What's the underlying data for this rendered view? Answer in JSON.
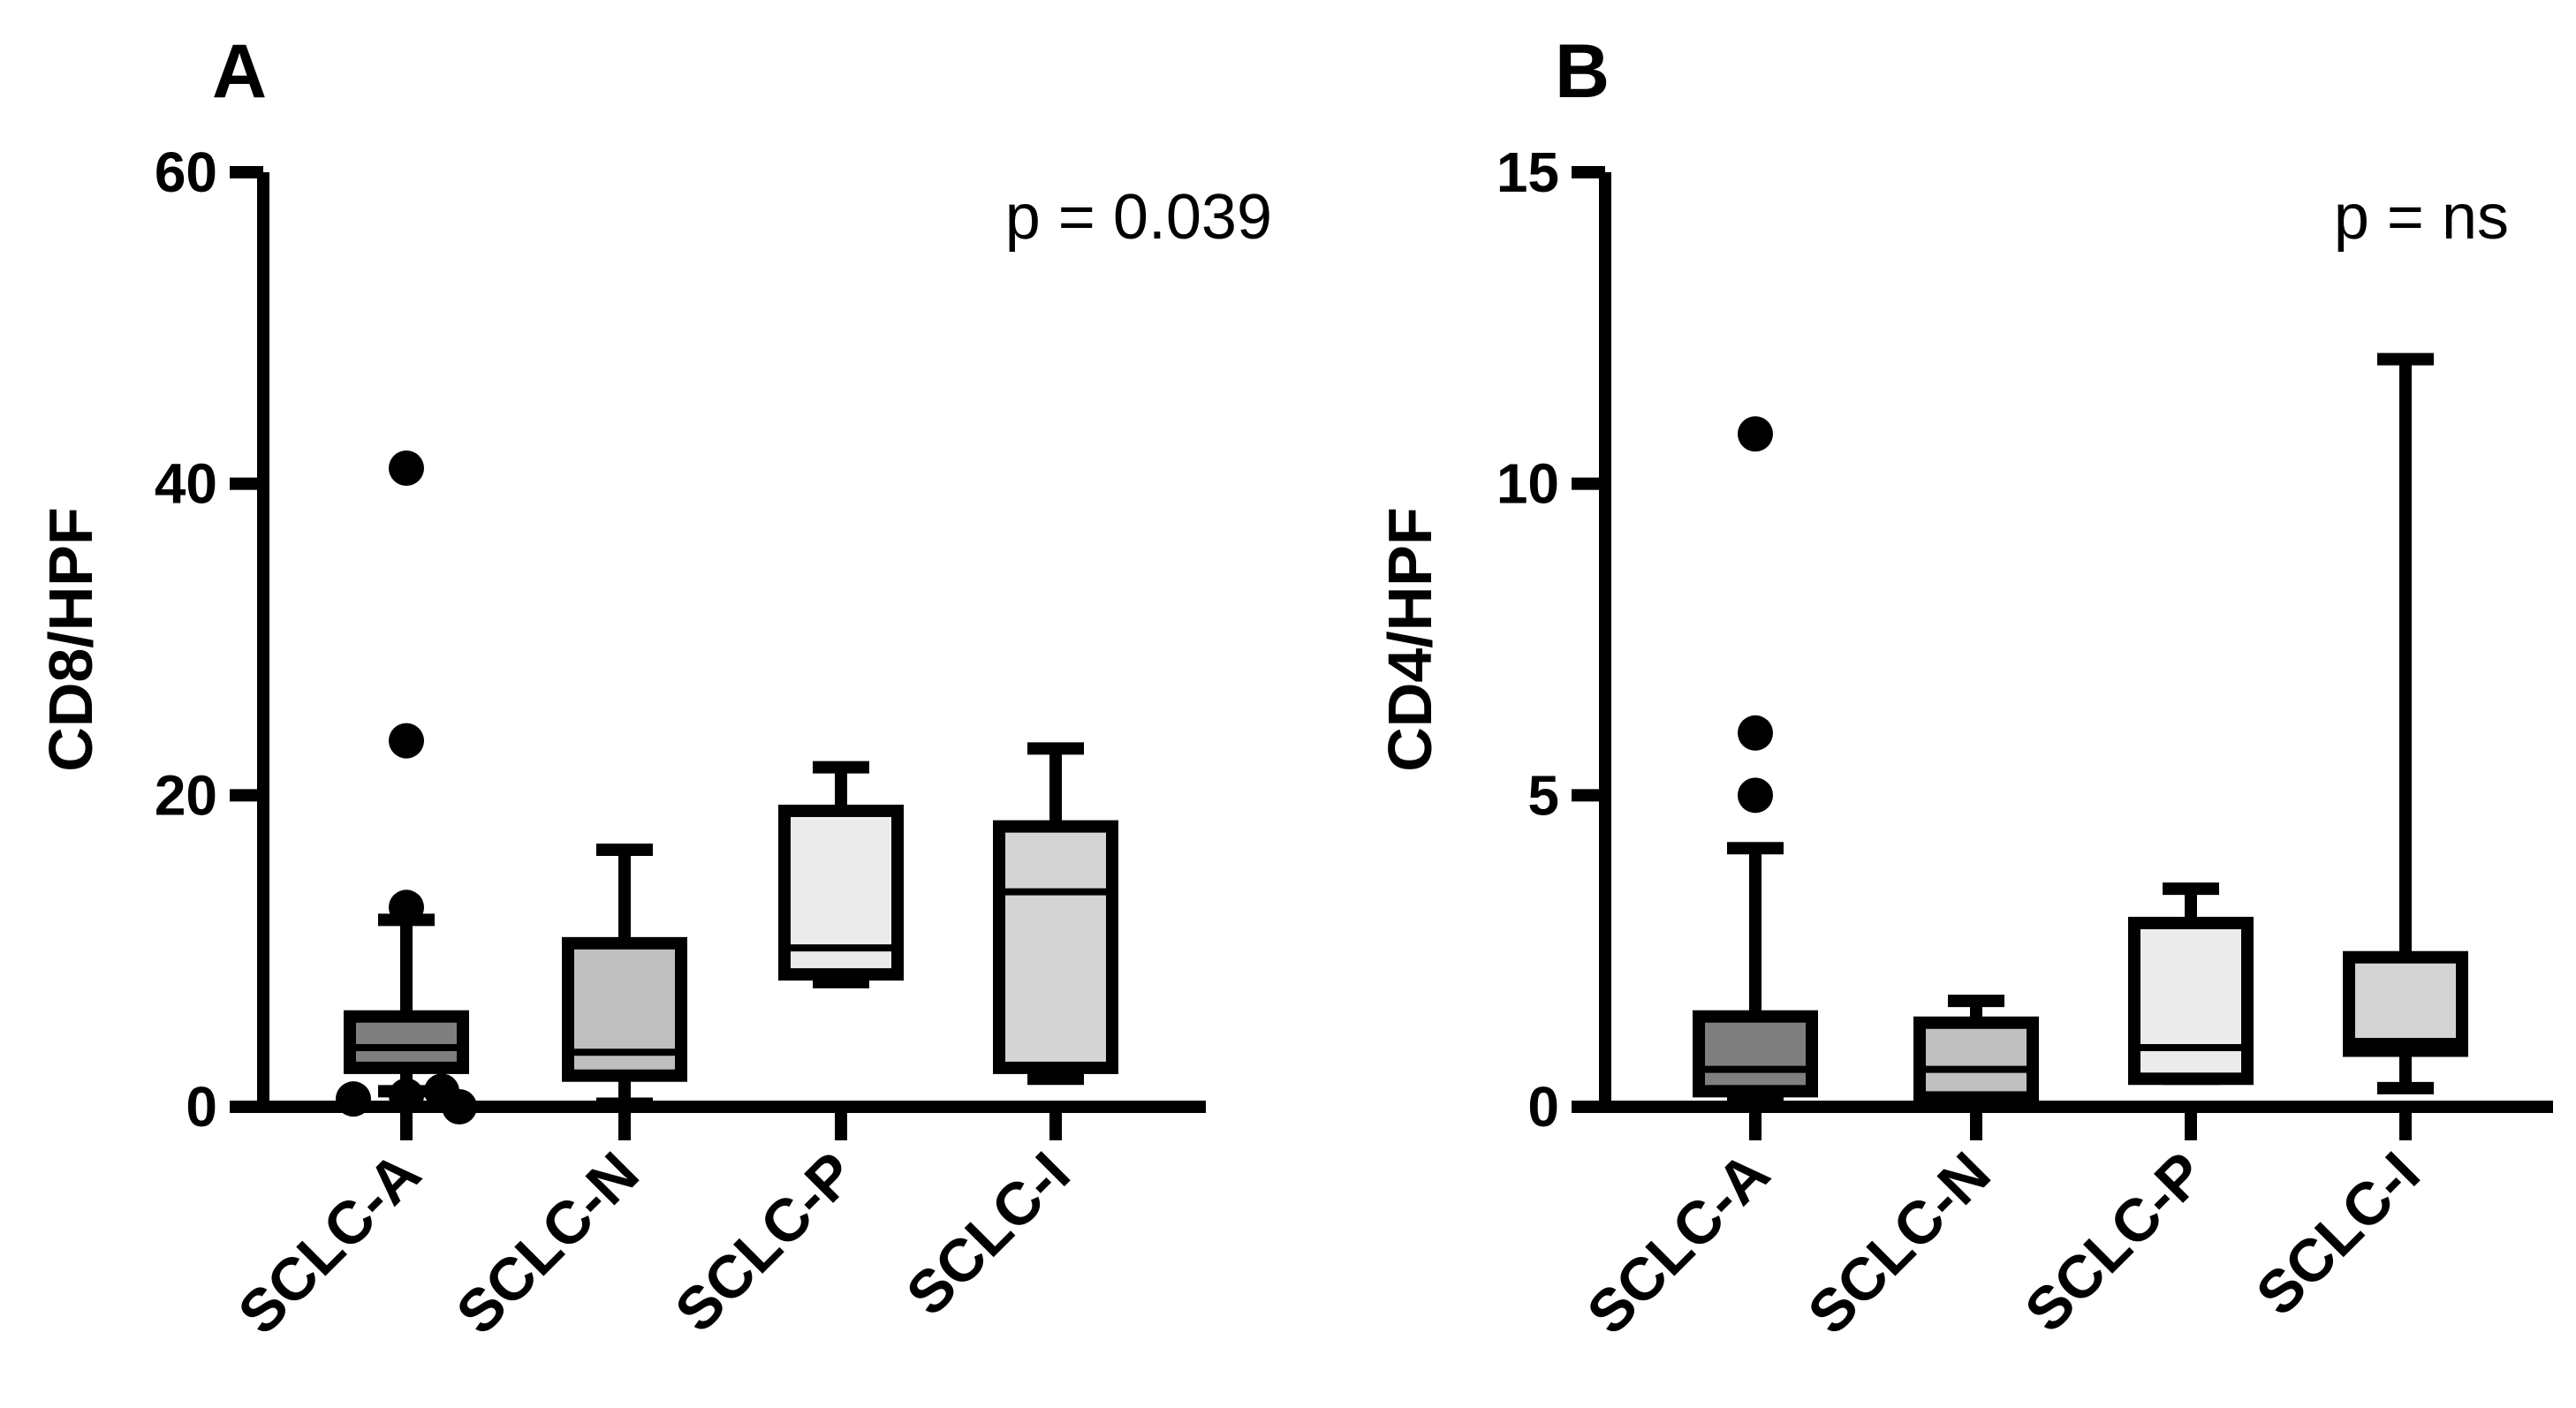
{
  "chart_data": [
    {
      "panel": "A",
      "type": "box",
      "categories": [
        "SCLC-A",
        "SCLC-N",
        "SCLC-P",
        "SCLC-I"
      ],
      "ylabel": "CD8/HPF",
      "ylim": [
        0,
        60
      ],
      "yticks": [
        0,
        20,
        40,
        60
      ],
      "annotation": "p = 0.039",
      "boxes": [
        {
          "category": "SCLC-A",
          "whisker_low": 1,
          "q1": 2.5,
          "median": 3.8,
          "q3": 5.8,
          "whisker_high": 12,
          "fill": "#7f7f7f",
          "outliers": [
            41,
            23.5,
            12.8,
            0,
            0.5,
            0.7,
            1.0
          ]
        },
        {
          "category": "SCLC-N",
          "whisker_low": 0.2,
          "q1": 2.0,
          "median": 3.5,
          "q3": 10.5,
          "whisker_high": 16.5,
          "fill": "#bfbfbf",
          "outliers": []
        },
        {
          "category": "SCLC-P",
          "whisker_low": 8.0,
          "q1": 8.5,
          "median": 10.2,
          "q3": 19.0,
          "whisker_high": 21.8,
          "fill": "#ebebeb",
          "outliers": []
        },
        {
          "category": "SCLC-I",
          "whisker_low": 1.8,
          "q1": 2.5,
          "median": 13.8,
          "q3": 18.0,
          "whisker_high": 23.0,
          "fill": "#d4d4d4",
          "outliers": []
        }
      ]
    },
    {
      "panel": "B",
      "type": "box",
      "categories": [
        "SCLC-A",
        "SCLC-N",
        "SCLC-P",
        "SCLC-I"
      ],
      "ylabel": "CD4/HPF",
      "ylim": [
        0,
        15
      ],
      "yticks": [
        0,
        5,
        10,
        15
      ],
      "annotation": "p = ns",
      "boxes": [
        {
          "category": "SCLC-A",
          "whisker_low": 0.1,
          "q1": 0.25,
          "median": 0.6,
          "q3": 1.45,
          "whisker_high": 4.15,
          "fill": "#7f7f7f",
          "outliers": [
            10.8,
            6.0,
            5.0
          ]
        },
        {
          "category": "SCLC-N",
          "whisker_low": 0.1,
          "q1": 0.15,
          "median": 0.6,
          "q3": 1.35,
          "whisker_high": 1.7,
          "fill": "#bfbfbf",
          "outliers": []
        },
        {
          "category": "SCLC-P",
          "whisker_low": 0.45,
          "q1": 0.45,
          "median": 0.95,
          "q3": 2.95,
          "whisker_high": 3.5,
          "fill": "#ebebeb",
          "outliers": []
        },
        {
          "category": "SCLC-I",
          "whisker_low": 0.3,
          "q1": 0.9,
          "median": 1.05,
          "q3": 2.4,
          "whisker_high": 12.0,
          "fill": "#d4d4d4",
          "outliers": []
        }
      ]
    }
  ]
}
